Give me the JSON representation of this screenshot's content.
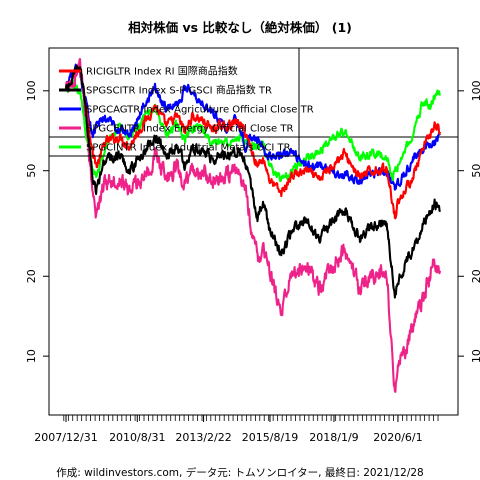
{
  "page": {
    "title": "相対株価 vs 比較なし（絶対株価） (1)",
    "caption": "作成: wildinvestors.com, データ元: トムソンロイター, 最終日: 2021/12/28"
  },
  "chart_data": {
    "type": "line",
    "title": "相対株価 vs 比較なし（絶対株価） (1)",
    "xlabel": "",
    "ylabel": "",
    "y_scale": "log",
    "ylim": [
      6,
      145
    ],
    "xlim": [
      "2007-12-31",
      "2021-12-28"
    ],
    "grid": false,
    "legend_position": "top-left",
    "x_tick_labels": [
      "2007/12/31",
      "2010/8/31",
      "2013/2/22",
      "2015/8/19",
      "2018/1/9",
      "2020/6/1"
    ],
    "x_tick_dates": [
      "2007-12-31",
      "2010-08-31",
      "2013-02-22",
      "2015-08-19",
      "2018-01-09",
      "2020-06-01"
    ],
    "y_ticks": [
      10,
      20,
      50,
      100
    ],
    "reference_line": {
      "y": 67
    },
    "series": [
      {
        "name": "RICIGLTR Index RI 国際商品指数",
        "color": "#ff0000",
        "points": [
          [
            "2007-12-31",
            100
          ],
          [
            "2008-03-31",
            112
          ],
          [
            "2008-07-02",
            122
          ],
          [
            "2008-09-15",
            95
          ],
          [
            "2008-12-31",
            58
          ],
          [
            "2009-03-01",
            52
          ],
          [
            "2009-06-15",
            64
          ],
          [
            "2009-12-31",
            67
          ],
          [
            "2010-05-15",
            62
          ],
          [
            "2010-12-31",
            78
          ],
          [
            "2011-04-30",
            88
          ],
          [
            "2011-10-01",
            74
          ],
          [
            "2012-03-01",
            80
          ],
          [
            "2012-06-15",
            70
          ],
          [
            "2012-09-15",
            80
          ],
          [
            "2013-02-01",
            78
          ],
          [
            "2013-06-01",
            72
          ],
          [
            "2013-12-31",
            74
          ],
          [
            "2014-06-15",
            76
          ],
          [
            "2014-09-15",
            70
          ],
          [
            "2014-12-31",
            58
          ],
          [
            "2015-03-01",
            52
          ],
          [
            "2015-05-15",
            56
          ],
          [
            "2015-08-19",
            46
          ],
          [
            "2016-01-20",
            41
          ],
          [
            "2016-06-15",
            48
          ],
          [
            "2016-12-31",
            50
          ],
          [
            "2017-06-15",
            46
          ],
          [
            "2017-12-31",
            53
          ],
          [
            "2018-05-31",
            58
          ],
          [
            "2018-12-31",
            47
          ],
          [
            "2019-06-15",
            50
          ],
          [
            "2019-12-31",
            51
          ],
          [
            "2020-04-21",
            34
          ],
          [
            "2020-06-01",
            38
          ],
          [
            "2020-12-31",
            48
          ],
          [
            "2021-06-15",
            63
          ],
          [
            "2021-10-15",
            74
          ],
          [
            "2021-12-28",
            70
          ]
        ]
      },
      {
        "name": "SPGSCITR Index S-P GSCI 商品指数 TR",
        "color": "#000000",
        "points": [
          [
            "2007-12-31",
            100
          ],
          [
            "2008-03-31",
            110
          ],
          [
            "2008-07-02",
            125
          ],
          [
            "2008-09-15",
            92
          ],
          [
            "2008-12-31",
            47
          ],
          [
            "2009-02-15",
            42
          ],
          [
            "2009-06-15",
            55
          ],
          [
            "2009-12-31",
            57
          ],
          [
            "2010-05-15",
            50
          ],
          [
            "2010-12-31",
            60
          ],
          [
            "2011-04-30",
            68
          ],
          [
            "2011-10-01",
            57
          ],
          [
            "2012-03-01",
            62
          ],
          [
            "2012-06-15",
            52
          ],
          [
            "2012-09-15",
            60
          ],
          [
            "2013-02-01",
            60
          ],
          [
            "2013-06-01",
            56
          ],
          [
            "2013-12-31",
            58
          ],
          [
            "2014-06-15",
            60
          ],
          [
            "2014-09-15",
            53
          ],
          [
            "2014-12-31",
            40
          ],
          [
            "2015-03-01",
            33
          ],
          [
            "2015-05-15",
            38
          ],
          [
            "2015-08-19",
            30
          ],
          [
            "2016-01-20",
            24
          ],
          [
            "2016-06-15",
            30
          ],
          [
            "2016-12-31",
            32
          ],
          [
            "2017-06-15",
            28
          ],
          [
            "2017-12-31",
            32
          ],
          [
            "2018-05-31",
            36
          ],
          [
            "2018-12-31",
            28
          ],
          [
            "2019-06-15",
            31
          ],
          [
            "2019-12-31",
            32
          ],
          [
            "2020-04-21",
            17
          ],
          [
            "2020-06-01",
            19
          ],
          [
            "2020-12-31",
            26
          ],
          [
            "2021-06-15",
            33
          ],
          [
            "2021-10-15",
            38
          ],
          [
            "2021-12-28",
            35
          ]
        ]
      },
      {
        "name": "SPGCAGTR Index Agriculture Official Close TR",
        "color": "#0000ff",
        "points": [
          [
            "2007-12-31",
            100
          ],
          [
            "2008-03-31",
            118
          ],
          [
            "2008-07-02",
            120
          ],
          [
            "2008-09-15",
            95
          ],
          [
            "2008-12-31",
            70
          ],
          [
            "2009-06-15",
            80
          ],
          [
            "2009-12-31",
            72
          ],
          [
            "2010-05-15",
            68
          ],
          [
            "2010-12-31",
            92
          ],
          [
            "2011-04-30",
            102
          ],
          [
            "2011-10-01",
            86
          ],
          [
            "2012-03-01",
            90
          ],
          [
            "2012-07-20",
            105
          ],
          [
            "2012-12-31",
            92
          ],
          [
            "2013-06-01",
            84
          ],
          [
            "2013-12-31",
            72
          ],
          [
            "2014-05-01",
            82
          ],
          [
            "2014-09-15",
            62
          ],
          [
            "2014-12-31",
            68
          ],
          [
            "2015-06-01",
            60
          ],
          [
            "2015-08-19",
            56
          ],
          [
            "2016-06-15",
            58
          ],
          [
            "2016-12-31",
            52
          ],
          [
            "2017-06-15",
            52
          ],
          [
            "2017-12-31",
            50
          ],
          [
            "2018-05-31",
            48
          ],
          [
            "2018-12-31",
            46
          ],
          [
            "2019-06-15",
            48
          ],
          [
            "2019-12-31",
            50
          ],
          [
            "2020-04-21",
            42
          ],
          [
            "2020-06-01",
            44
          ],
          [
            "2020-12-31",
            55
          ],
          [
            "2021-06-15",
            62
          ],
          [
            "2021-10-15",
            64
          ],
          [
            "2021-12-28",
            68
          ]
        ]
      },
      {
        "name": "SPGCENTR Index Energy Official Close TR",
        "color": "#ee2288",
        "points": [
          [
            "2007-12-31",
            100
          ],
          [
            "2008-03-31",
            108
          ],
          [
            "2008-07-02",
            130
          ],
          [
            "2008-09-15",
            88
          ],
          [
            "2008-12-31",
            38
          ],
          [
            "2009-02-15",
            34
          ],
          [
            "2009-06-15",
            46
          ],
          [
            "2009-12-31",
            47
          ],
          [
            "2010-05-15",
            42
          ],
          [
            "2010-12-31",
            48
          ],
          [
            "2011-04-30",
            57
          ],
          [
            "2011-10-01",
            47
          ],
          [
            "2012-03-01",
            52
          ],
          [
            "2012-06-15",
            43
          ],
          [
            "2012-09-15",
            50
          ],
          [
            "2013-02-01",
            49
          ],
          [
            "2013-06-01",
            46
          ],
          [
            "2013-12-31",
            48
          ],
          [
            "2014-06-15",
            50
          ],
          [
            "2014-09-15",
            43
          ],
          [
            "2014-12-31",
            28
          ],
          [
            "2015-03-01",
            23
          ],
          [
            "2015-05-15",
            26
          ],
          [
            "2015-08-19",
            20
          ],
          [
            "2016-01-20",
            15
          ],
          [
            "2016-06-15",
            20
          ],
          [
            "2016-12-31",
            22
          ],
          [
            "2017-06-15",
            18
          ],
          [
            "2017-12-31",
            22
          ],
          [
            "2018-05-31",
            25
          ],
          [
            "2018-12-31",
            18
          ],
          [
            "2019-06-15",
            20
          ],
          [
            "2019-12-31",
            21
          ],
          [
            "2020-04-21",
            7
          ],
          [
            "2020-06-01",
            9
          ],
          [
            "2020-12-31",
            13
          ],
          [
            "2021-06-15",
            18
          ],
          [
            "2021-10-15",
            23
          ],
          [
            "2021-12-28",
            21
          ]
        ]
      },
      {
        "name": "SPGCINTR Index Industrial Metals OCI TR",
        "color": "#00ff00",
        "points": [
          [
            "2007-12-31",
            100
          ],
          [
            "2008-03-31",
            108
          ],
          [
            "2008-07-02",
            100
          ],
          [
            "2008-12-31",
            48
          ],
          [
            "2009-02-15",
            47
          ],
          [
            "2009-06-15",
            60
          ],
          [
            "2009-12-31",
            76
          ],
          [
            "2010-05-15",
            66
          ],
          [
            "2010-12-31",
            82
          ],
          [
            "2011-04-30",
            86
          ],
          [
            "2011-10-01",
            68
          ],
          [
            "2012-03-01",
            75
          ],
          [
            "2012-06-15",
            66
          ],
          [
            "2012-09-15",
            72
          ],
          [
            "2013-02-01",
            73
          ],
          [
            "2013-06-01",
            63
          ],
          [
            "2013-12-31",
            64
          ],
          [
            "2014-06-15",
            67
          ],
          [
            "2014-09-15",
            66
          ],
          [
            "2014-12-31",
            62
          ],
          [
            "2015-05-15",
            62
          ],
          [
            "2015-08-19",
            52
          ],
          [
            "2016-01-20",
            46
          ],
          [
            "2016-06-15",
            50
          ],
          [
            "2016-12-31",
            56
          ],
          [
            "2017-06-15",
            58
          ],
          [
            "2017-12-31",
            68
          ],
          [
            "2018-05-31",
            70
          ],
          [
            "2018-12-31",
            56
          ],
          [
            "2019-06-15",
            58
          ],
          [
            "2019-12-31",
            57
          ],
          [
            "2020-03-23",
            47
          ],
          [
            "2020-06-01",
            52
          ],
          [
            "2020-12-31",
            70
          ],
          [
            "2021-05-10",
            92
          ],
          [
            "2021-08-15",
            86
          ],
          [
            "2021-10-15",
            96
          ],
          [
            "2021-12-28",
            96
          ]
        ]
      }
    ]
  }
}
